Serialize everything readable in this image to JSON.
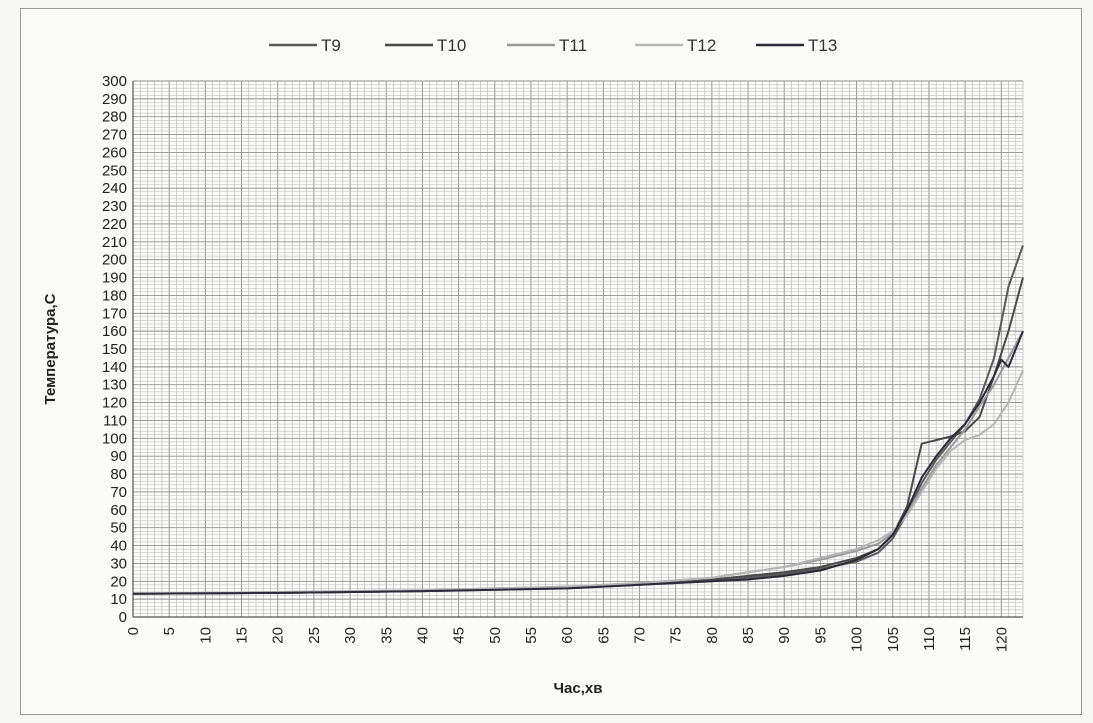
{
  "chart_data": {
    "type": "line",
    "title": "",
    "xlabel": "Час,хв",
    "ylabel": "Температура,С",
    "xlim": [
      0,
      123
    ],
    "ylim": [
      0,
      300
    ],
    "grid": true,
    "legend_position": "top",
    "x_ticks": [
      0,
      5,
      10,
      15,
      20,
      25,
      30,
      35,
      40,
      45,
      50,
      55,
      60,
      65,
      70,
      75,
      80,
      85,
      90,
      95,
      100,
      105,
      110,
      115,
      120
    ],
    "y_ticks": [
      0,
      10,
      20,
      30,
      40,
      50,
      60,
      70,
      80,
      90,
      100,
      110,
      120,
      130,
      140,
      150,
      160,
      170,
      180,
      190,
      200,
      210,
      220,
      230,
      240,
      250,
      260,
      270,
      280,
      290,
      300
    ],
    "series": [
      {
        "name": "T9",
        "color": "#5a5a5a",
        "x": [
          0,
          20,
          40,
          60,
          70,
          80,
          85,
          90,
          95,
          100,
          103,
          105,
          107,
          109,
          111,
          113,
          115,
          117,
          119,
          121,
          123
        ],
        "y": [
          13,
          13.5,
          14.5,
          16,
          18,
          20,
          22,
          24,
          27,
          31,
          36,
          44,
          58,
          75,
          88,
          98,
          108,
          122,
          145,
          185,
          208
        ]
      },
      {
        "name": "T10",
        "color": "#4a4a4a",
        "x": [
          0,
          20,
          40,
          60,
          70,
          80,
          85,
          90,
          95,
          100,
          103,
          105,
          107,
          108,
          109,
          111,
          113,
          115,
          117,
          119,
          121,
          123
        ],
        "y": [
          13,
          13.5,
          14.5,
          16.5,
          18,
          21,
          23,
          25,
          28,
          33,
          38,
          46,
          62,
          80,
          97,
          99,
          101,
          104,
          112,
          135,
          160,
          190
        ]
      },
      {
        "name": "T11",
        "color": "#9a9a9a",
        "x": [
          0,
          20,
          40,
          60,
          70,
          80,
          85,
          90,
          95,
          100,
          103,
          105,
          107,
          109,
          111,
          113,
          115,
          117,
          119,
          121,
          123
        ],
        "y": [
          13,
          14,
          15,
          17,
          19,
          22,
          25,
          28,
          32,
          37,
          41,
          47,
          58,
          72,
          85,
          95,
          105,
          118,
          130,
          145,
          160
        ]
      },
      {
        "name": "T12",
        "color": "#b5b5b5",
        "x": [
          0,
          20,
          40,
          60,
          70,
          80,
          85,
          90,
          95,
          100,
          103,
          105,
          107,
          109,
          111,
          113,
          115,
          117,
          119,
          121,
          123
        ],
        "y": [
          13,
          14,
          15,
          17,
          19,
          22,
          25,
          28,
          33,
          38,
          43,
          48,
          57,
          70,
          83,
          93,
          99,
          102,
          108,
          120,
          138
        ]
      },
      {
        "name": "T13",
        "color": "#2a2a3a",
        "x": [
          0,
          20,
          40,
          60,
          70,
          80,
          85,
          90,
          95,
          100,
          103,
          105,
          107,
          109,
          111,
          113,
          115,
          117,
          119,
          120,
          121,
          123
        ],
        "y": [
          13,
          13.5,
          14.5,
          16,
          18,
          20,
          21,
          23,
          26,
          32,
          38,
          46,
          60,
          78,
          90,
          100,
          108,
          120,
          135,
          144,
          140,
          160
        ]
      }
    ]
  }
}
